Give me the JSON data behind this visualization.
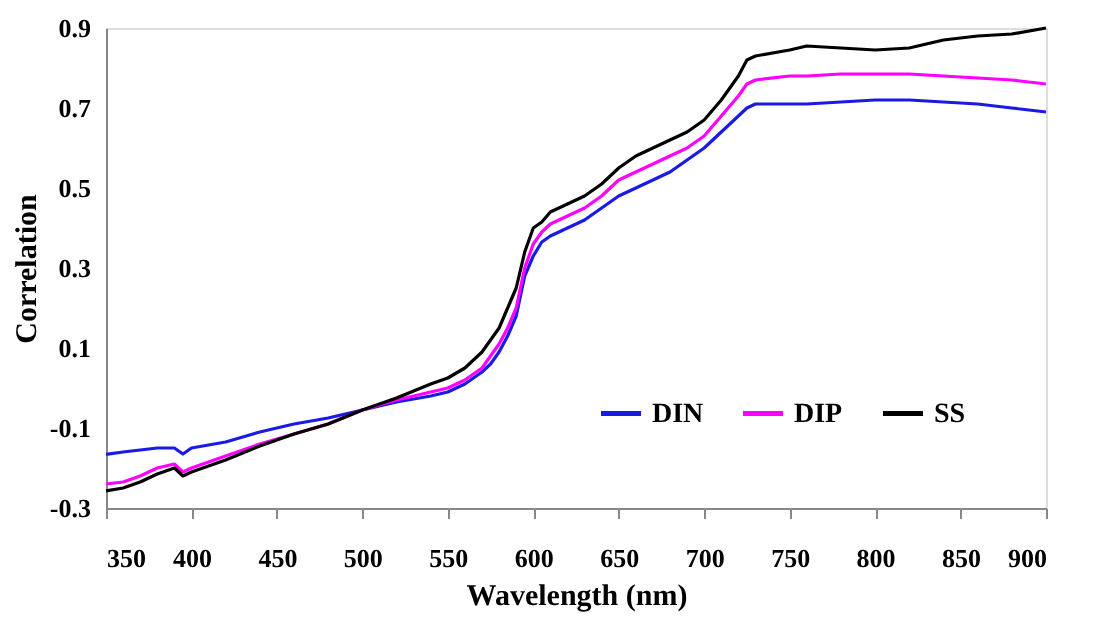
{
  "chart_data": {
    "type": "line",
    "xlabel": "Wavelength (nm)",
    "ylabel": "Correlation",
    "xlim": [
      350,
      900
    ],
    "xticks": [
      350,
      400,
      450,
      500,
      550,
      600,
      650,
      700,
      750,
      800,
      850,
      900
    ],
    "ylim": [
      -0.3,
      0.9
    ],
    "yticks": [
      -0.3,
      -0.1,
      0.1,
      0.3,
      0.5,
      0.7,
      0.9
    ],
    "grid": false,
    "legend": "bottom right",
    "line_style": "solid",
    "marker": "none",
    "x": [
      350,
      360,
      370,
      380,
      390,
      395,
      400,
      420,
      440,
      460,
      480,
      500,
      520,
      540,
      550,
      560,
      570,
      575,
      580,
      585,
      590,
      595,
      600,
      605,
      610,
      620,
      630,
      640,
      650,
      660,
      670,
      680,
      690,
      700,
      710,
      720,
      725,
      730,
      750,
      760,
      780,
      800,
      820,
      840,
      860,
      880,
      900
    ],
    "series": [
      {
        "name": "DIN",
        "color": "#1a1ae6",
        "values": [
          -0.166,
          -0.16,
          -0.155,
          -0.15,
          -0.15,
          -0.165,
          -0.15,
          -0.135,
          -0.11,
          -0.09,
          -0.075,
          -0.055,
          -0.035,
          -0.02,
          -0.01,
          0.01,
          0.04,
          0.06,
          0.09,
          0.13,
          0.18,
          0.28,
          0.33,
          0.365,
          0.38,
          0.4,
          0.42,
          0.45,
          0.48,
          0.5,
          0.52,
          0.54,
          0.57,
          0.6,
          0.64,
          0.68,
          0.7,
          0.71,
          0.71,
          0.71,
          0.715,
          0.72,
          0.72,
          0.715,
          0.71,
          0.7,
          0.69
        ]
      },
      {
        "name": "DIP",
        "color": "#ff00ff",
        "values": [
          -0.24,
          -0.235,
          -0.22,
          -0.2,
          -0.19,
          -0.21,
          -0.2,
          -0.17,
          -0.14,
          -0.115,
          -0.09,
          -0.055,
          -0.03,
          -0.01,
          0.0,
          0.02,
          0.05,
          0.08,
          0.11,
          0.15,
          0.2,
          0.3,
          0.36,
          0.39,
          0.41,
          0.43,
          0.45,
          0.48,
          0.52,
          0.54,
          0.56,
          0.58,
          0.6,
          0.63,
          0.68,
          0.73,
          0.76,
          0.77,
          0.78,
          0.78,
          0.785,
          0.785,
          0.785,
          0.78,
          0.775,
          0.77,
          0.76
        ]
      },
      {
        "name": "SS",
        "color": "#000000",
        "values": [
          -0.257,
          -0.25,
          -0.235,
          -0.215,
          -0.2,
          -0.22,
          -0.21,
          -0.18,
          -0.145,
          -0.115,
          -0.09,
          -0.055,
          -0.025,
          0.01,
          0.025,
          0.05,
          0.09,
          0.12,
          0.15,
          0.2,
          0.25,
          0.34,
          0.4,
          0.415,
          0.44,
          0.46,
          0.48,
          0.51,
          0.55,
          0.58,
          0.6,
          0.62,
          0.64,
          0.67,
          0.72,
          0.78,
          0.82,
          0.83,
          0.845,
          0.855,
          0.85,
          0.845,
          0.85,
          0.87,
          0.88,
          0.885,
          0.9
        ]
      }
    ]
  }
}
